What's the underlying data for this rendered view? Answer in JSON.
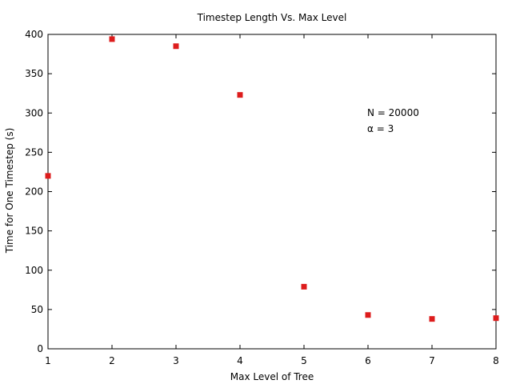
{
  "chart_data": {
    "type": "scatter",
    "title": "Timestep Length Vs. Max Level",
    "xlabel": "Max Level of Tree",
    "ylabel": "Time for One Timestep (s)",
    "xlim": [
      1,
      8
    ],
    "ylim": [
      0,
      400
    ],
    "xticks": [
      1,
      2,
      3,
      4,
      5,
      6,
      7,
      8
    ],
    "yticks": [
      0,
      50,
      100,
      150,
      200,
      250,
      300,
      350,
      400
    ],
    "grid": false,
    "legend": "none",
    "series": [
      {
        "color": "#dd1c1c",
        "marker": "square",
        "x": [
          1,
          2,
          3,
          4,
          5,
          6,
          7,
          8
        ],
        "y": [
          220,
          394,
          385,
          323,
          79,
          43,
          38,
          39
        ]
      }
    ],
    "annotations": [
      "N = 20000",
      "α = 3"
    ]
  }
}
